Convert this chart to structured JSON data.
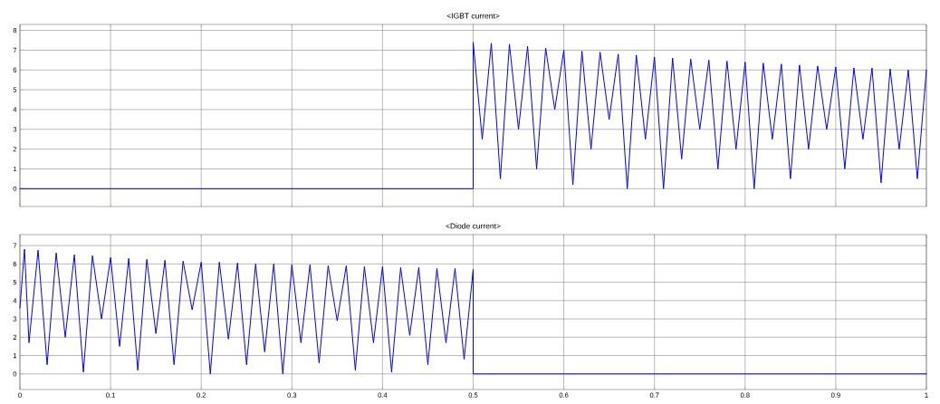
{
  "chart_data": [
    {
      "type": "line",
      "title": "<IGBT current>",
      "color": "#0000ff",
      "grid": true,
      "tick_labels": "y",
      "xlim": [
        0,
        1
      ],
      "ylim": [
        -0.9,
        8.3
      ],
      "xticks": [
        0,
        0.1,
        0.2,
        0.3,
        0.4,
        0.5,
        0.6,
        0.7,
        0.8,
        0.9,
        1
      ],
      "yticks": [
        0,
        1,
        2,
        3,
        4,
        5,
        6,
        7,
        8
      ],
      "x": [
        0,
        0.5,
        0.5,
        0.51,
        0.52,
        0.53,
        0.54,
        0.55,
        0.56,
        0.57,
        0.58,
        0.59,
        0.6,
        0.61,
        0.62,
        0.63,
        0.64,
        0.65,
        0.66,
        0.67,
        0.68,
        0.69,
        0.7,
        0.71,
        0.72,
        0.73,
        0.74,
        0.75,
        0.76,
        0.77,
        0.78,
        0.79,
        0.8,
        0.81,
        0.82,
        0.83,
        0.84,
        0.85,
        0.86,
        0.87,
        0.88,
        0.89,
        0.9,
        0.91,
        0.92,
        0.93,
        0.94,
        0.95,
        0.96,
        0.97,
        0.98,
        0.99,
        1
      ],
      "values": [
        0,
        0,
        7.4,
        2.5,
        7.35,
        0.5,
        7.3,
        3.0,
        7.2,
        1.0,
        7.1,
        4.0,
        7.0,
        0.2,
        6.95,
        2.0,
        6.9,
        3.5,
        6.8,
        0,
        6.75,
        2.5,
        6.65,
        0,
        6.6,
        1.5,
        6.55,
        3.0,
        6.5,
        1.0,
        6.45,
        2.0,
        6.4,
        0,
        6.35,
        2.5,
        6.3,
        0.5,
        6.25,
        2.0,
        6.2,
        3.0,
        6.15,
        1.0,
        6.1,
        2.5,
        6.1,
        0.3,
        6.05,
        2.0,
        6.0,
        0.5,
        6.0
      ]
    },
    {
      "type": "line",
      "title": "<Diode current>",
      "color": "#0000ff",
      "grid": true,
      "xlim": [
        0,
        1
      ],
      "ylim": [
        -0.85,
        7.6
      ],
      "xticks": [
        0,
        0.1,
        0.2,
        0.3,
        0.4,
        0.5,
        0.6,
        0.7,
        0.8,
        0.9,
        1
      ],
      "yticks": [
        0,
        1,
        2,
        3,
        4,
        5,
        6,
        7
      ],
      "x": [
        0,
        0.005,
        0.01,
        0.02,
        0.03,
        0.04,
        0.05,
        0.06,
        0.07,
        0.08,
        0.09,
        0.1,
        0.11,
        0.12,
        0.13,
        0.14,
        0.15,
        0.16,
        0.17,
        0.18,
        0.19,
        0.2,
        0.21,
        0.22,
        0.23,
        0.24,
        0.25,
        0.26,
        0.27,
        0.28,
        0.29,
        0.3,
        0.31,
        0.32,
        0.33,
        0.34,
        0.35,
        0.36,
        0.37,
        0.38,
        0.39,
        0.4,
        0.41,
        0.42,
        0.43,
        0.44,
        0.45,
        0.46,
        0.47,
        0.48,
        0.49,
        0.5,
        0.5,
        1
      ],
      "values": [
        3.6,
        6.8,
        1.7,
        6.75,
        0.5,
        6.6,
        2.0,
        6.5,
        0.1,
        6.45,
        3.0,
        6.35,
        1.5,
        6.3,
        0.2,
        6.25,
        2.2,
        6.2,
        0.5,
        6.15,
        3.5,
        6.1,
        0,
        6.1,
        1.9,
        6.05,
        0.5,
        6.0,
        1.2,
        6.0,
        0,
        5.95,
        1.7,
        5.95,
        0.6,
        5.9,
        2.9,
        5.9,
        0.2,
        5.85,
        1.7,
        5.85,
        0.1,
        5.8,
        2.1,
        5.8,
        0.5,
        5.75,
        1.7,
        5.75,
        0.8,
        5.7,
        0,
        0
      ]
    }
  ]
}
